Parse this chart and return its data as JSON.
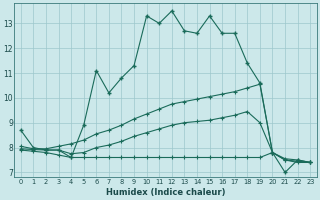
{
  "xlabel": "Humidex (Indice chaleur)",
  "background_color": "#cce8ea",
  "grid_color": "#9dc8cc",
  "line_color": "#1a6b5a",
  "xlim": [
    -0.5,
    23.5
  ],
  "ylim": [
    6.8,
    13.8
  ],
  "xticks": [
    0,
    1,
    2,
    3,
    4,
    5,
    6,
    7,
    8,
    9,
    10,
    11,
    12,
    13,
    14,
    15,
    16,
    17,
    18,
    19,
    20,
    21,
    22,
    23
  ],
  "yticks": [
    7,
    8,
    9,
    10,
    11,
    12,
    13
  ],
  "series1_x": [
    0,
    1,
    2,
    3,
    4,
    5,
    6,
    7,
    8,
    9,
    10,
    11,
    12,
    13,
    14,
    15,
    16,
    17,
    18,
    19,
    20,
    21,
    22,
    23
  ],
  "series1_y": [
    8.7,
    8.0,
    7.9,
    7.9,
    7.6,
    8.9,
    11.1,
    10.2,
    10.8,
    11.3,
    13.3,
    13.0,
    13.5,
    12.7,
    12.6,
    13.3,
    12.6,
    12.6,
    11.4,
    10.6,
    7.8,
    7.0,
    7.5,
    7.4
  ],
  "series2_x": [
    0,
    1,
    2,
    3,
    4,
    5,
    6,
    7,
    8,
    9,
    10,
    11,
    12,
    13,
    14,
    15,
    16,
    17,
    18,
    19,
    20,
    21,
    22,
    23
  ],
  "series2_y": [
    8.05,
    7.95,
    7.95,
    8.05,
    8.15,
    8.3,
    8.55,
    8.7,
    8.9,
    9.15,
    9.35,
    9.55,
    9.75,
    9.85,
    9.95,
    10.05,
    10.15,
    10.25,
    10.4,
    10.55,
    7.8,
    7.55,
    7.5,
    7.4
  ],
  "series3_x": [
    0,
    1,
    2,
    3,
    4,
    5,
    6,
    7,
    8,
    9,
    10,
    11,
    12,
    13,
    14,
    15,
    16,
    17,
    18,
    19,
    20,
    21,
    22,
    23
  ],
  "series3_y": [
    7.95,
    7.92,
    7.9,
    7.9,
    7.75,
    7.8,
    8.0,
    8.1,
    8.25,
    8.45,
    8.6,
    8.75,
    8.9,
    9.0,
    9.05,
    9.1,
    9.2,
    9.3,
    9.45,
    9.0,
    7.8,
    7.5,
    7.45,
    7.4
  ],
  "series4_x": [
    0,
    1,
    2,
    3,
    4,
    5,
    6,
    7,
    8,
    9,
    10,
    11,
    12,
    13,
    14,
    15,
    16,
    17,
    18,
    19,
    20,
    21,
    22,
    23
  ],
  "series4_y": [
    7.9,
    7.85,
    7.8,
    7.7,
    7.6,
    7.6,
    7.6,
    7.6,
    7.6,
    7.6,
    7.6,
    7.6,
    7.6,
    7.6,
    7.6,
    7.6,
    7.6,
    7.6,
    7.6,
    7.6,
    7.8,
    7.5,
    7.4,
    7.4
  ]
}
